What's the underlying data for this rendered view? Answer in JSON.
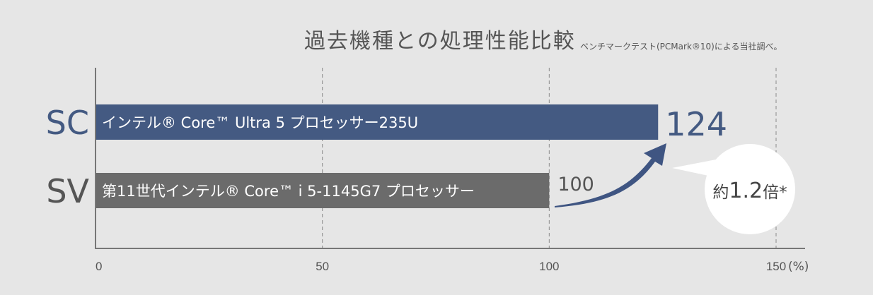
{
  "chart_data": {
    "type": "bar",
    "orientation": "horizontal",
    "title": "過去機種との処理性能比較",
    "note": "ベンチマークテスト(PCMark®10)による当社調べ。",
    "xlim": [
      0,
      150
    ],
    "x_ticks": [
      "0",
      "50",
      "100",
      "150"
    ],
    "x_unit": "(%)",
    "grid": "vertical dashed at each tick",
    "categories": [
      "SC",
      "SV"
    ],
    "bar_labels": [
      "インテル® Core™ Ultra 5 プロセッサー235U",
      "第11世代インテル® Core™ i 5-1145G7 プロセッサー"
    ],
    "values": [
      124,
      100
    ],
    "data_labels": [
      "124",
      "100"
    ],
    "annotation": {
      "prefix": "約",
      "value": "1.2",
      "suffix": "倍*"
    }
  },
  "colors": {
    "background": "#e6e6e6",
    "bar_sc": "#445a82",
    "bar_sv": "#6b6b6b",
    "label_sc": "#445a82",
    "label_sv": "#555555",
    "arrow": "#3f5582",
    "badge": "#ffffff"
  }
}
